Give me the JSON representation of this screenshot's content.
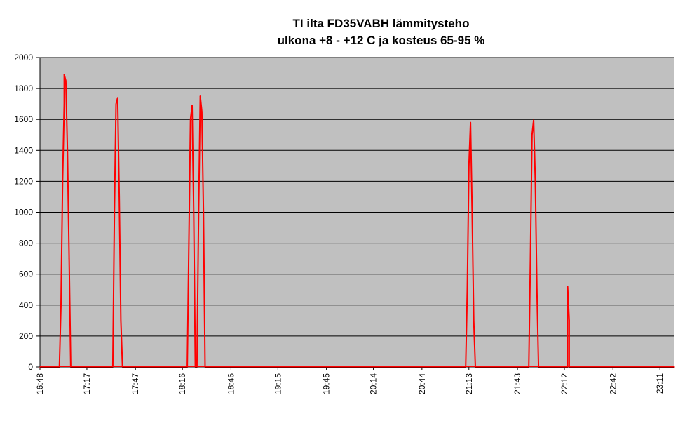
{
  "chart_data": {
    "type": "line",
    "title": "TI ilta FD35VABH lämmitysteho",
    "subtitle": "ulkona +8 - +12 C ja kosteus 65-95 %",
    "xlabel": "",
    "ylabel": "",
    "ylim": [
      0,
      2000
    ],
    "yticks": [
      0,
      200,
      400,
      600,
      800,
      1000,
      1200,
      1400,
      1600,
      1800,
      2000
    ],
    "xticks": [
      "16:48",
      "17:17",
      "17:47",
      "18:16",
      "18:46",
      "19:15",
      "19:45",
      "20:14",
      "20:44",
      "21:13",
      "21:43",
      "22:12",
      "22:42",
      "23:11"
    ],
    "grid": true,
    "legend": "none",
    "colors": {
      "plot_bg": "#c0c0c0",
      "line": "#ff0000",
      "grid": "#000000"
    },
    "series": [
      {
        "x": [
          "16:48",
          "17:00",
          "17:01",
          "17:02",
          "17:03",
          "17:03",
          "17:04",
          "17:05",
          "17:06",
          "17:07",
          "17:33",
          "17:34",
          "17:35",
          "17:36",
          "17:37",
          "17:38",
          "17:39",
          "18:19",
          "18:20",
          "18:21",
          "18:22",
          "18:23",
          "18:24",
          "18:25",
          "18:26",
          "18:27",
          "18:28",
          "18:29",
          "18:30",
          "18:31",
          "21:11",
          "21:12",
          "21:13",
          "21:14",
          "21:15",
          "21:16",
          "21:17",
          "21:50",
          "21:51",
          "21:52",
          "21:53",
          "21:54",
          "21:55",
          "21:56",
          "22:14",
          "22:14",
          "22:15",
          "22:15",
          "23:20"
        ],
        "y": [
          0,
          0,
          400,
          1200,
          1700,
          1890,
          1850,
          1400,
          700,
          0,
          0,
          1000,
          1700,
          1740,
          1100,
          300,
          0,
          0,
          800,
          1600,
          1690,
          1000,
          0,
          0,
          1000,
          1750,
          1650,
          1000,
          0,
          0,
          0,
          500,
          1300,
          1580,
          1000,
          300,
          0,
          0,
          700,
          1500,
          1595,
          1200,
          500,
          0,
          0,
          520,
          300,
          0,
          0
        ]
      }
    ]
  }
}
